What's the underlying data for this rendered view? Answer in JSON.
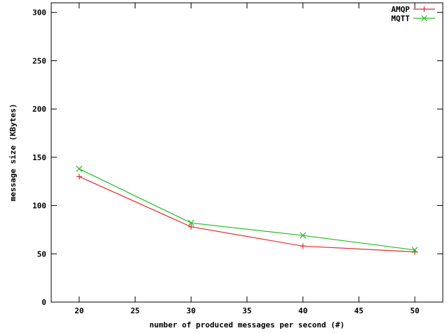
{
  "chart_data": {
    "type": "line",
    "title": "",
    "xlabel": "number of produced messages per second (#)",
    "ylabel": "message size (KBytes)",
    "xlim": [
      17.5,
      52.5
    ],
    "ylim": [
      0,
      310
    ],
    "xticks": [
      20,
      25,
      30,
      35,
      40,
      45,
      50
    ],
    "yticks": [
      0,
      50,
      100,
      150,
      200,
      250,
      300
    ],
    "grid": false,
    "legend_position": "top-right",
    "x": [
      20,
      30,
      40,
      50
    ],
    "series": [
      {
        "name": "AMQP",
        "values": [
          130,
          78,
          58,
          52
        ],
        "color": "#e03030",
        "marker": "+"
      },
      {
        "name": "MQTT",
        "values": [
          138,
          82,
          69,
          54
        ],
        "color": "#20c020",
        "marker": "x"
      }
    ]
  }
}
